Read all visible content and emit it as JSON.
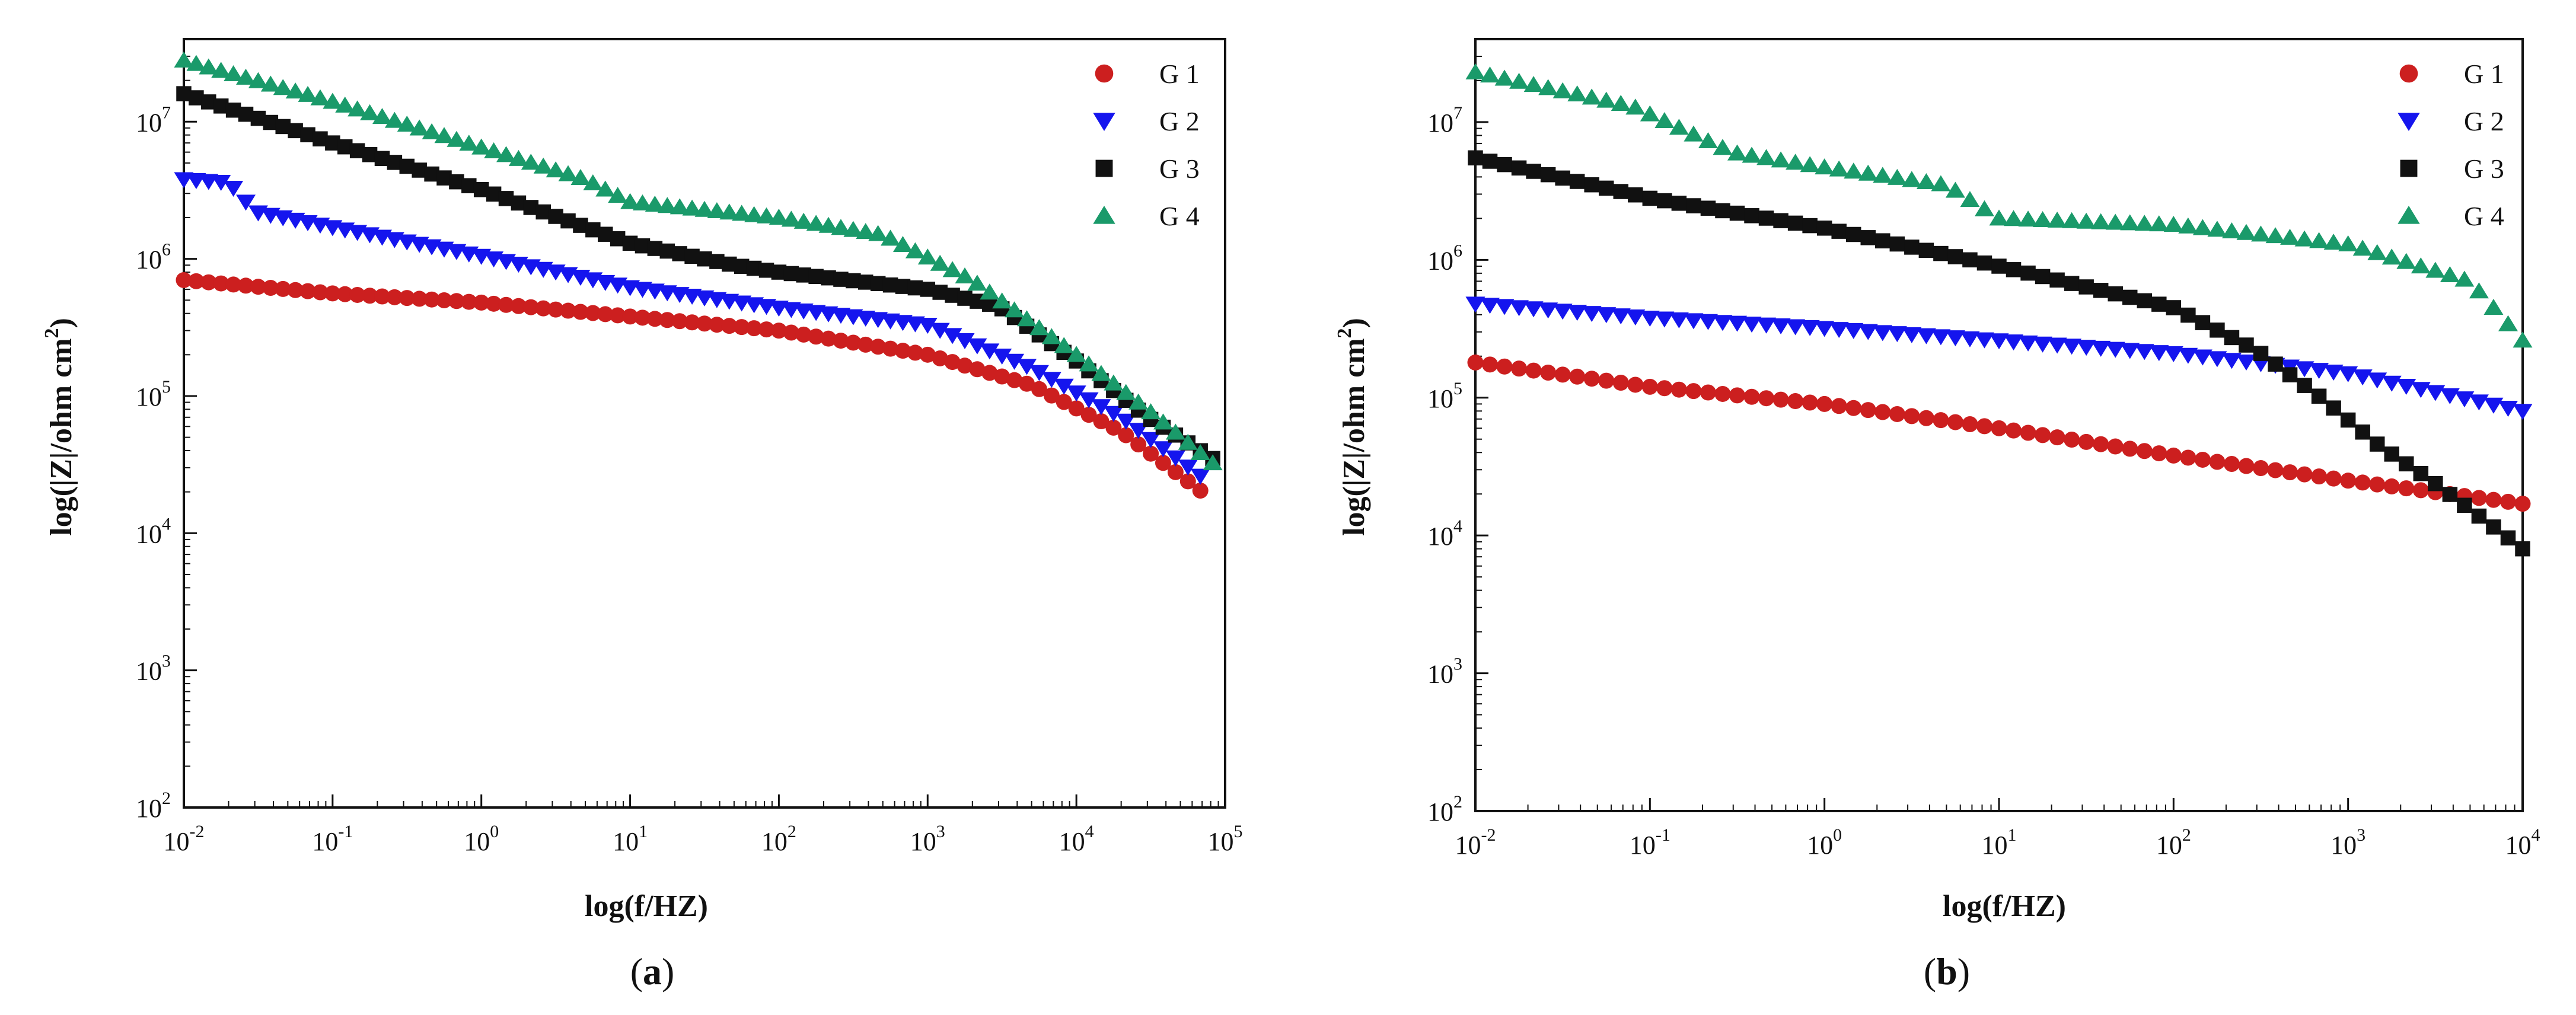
{
  "chart_data": [
    {
      "id": "a",
      "type": "scatter",
      "caption_open": "(",
      "caption_letter": "a",
      "caption_close": ")",
      "xlabel": "log(f/HZ)",
      "ylabel": "log(|Z|/ohm cm",
      "ylabel_sup": "2",
      "ylabel_end": ")",
      "xscale": "log",
      "yscale": "log",
      "xlim": [
        0.01,
        100000
      ],
      "ylim": [
        100,
        40000000
      ],
      "xticks": [
        {
          "value": 0.01,
          "base": "10",
          "exp": "-2"
        },
        {
          "value": 0.1,
          "base": "10",
          "exp": "-1"
        },
        {
          "value": 1,
          "base": "10",
          "exp": "0"
        },
        {
          "value": 10,
          "base": "10",
          "exp": "1"
        },
        {
          "value": 100,
          "base": "10",
          "exp": "2"
        },
        {
          "value": 1000,
          "base": "10",
          "exp": "3"
        },
        {
          "value": 10000,
          "base": "10",
          "exp": "4"
        },
        {
          "value": 100000,
          "base": "10",
          "exp": "5"
        }
      ],
      "yticks": [
        {
          "value": 100,
          "base": "10",
          "exp": "2"
        },
        {
          "value": 1000,
          "base": "10",
          "exp": "3"
        },
        {
          "value": 10000,
          "base": "10",
          "exp": "4"
        },
        {
          "value": 100000,
          "base": "10",
          "exp": "5"
        },
        {
          "value": 1000000,
          "base": "10",
          "exp": "6"
        },
        {
          "value": 10000000,
          "base": "10",
          "exp": "7"
        }
      ],
      "legend_position": "top-right",
      "series": [
        {
          "name": "G1",
          "label": "G 1",
          "marker": "circle",
          "color": "#cc1f1f",
          "points": [
            [
              0.01,
              700000
            ],
            [
              0.1,
              560000
            ],
            [
              1,
              480000
            ],
            [
              10,
              380000
            ],
            [
              100,
              300000
            ],
            [
              1000,
              200000
            ],
            [
              5000,
              120000
            ],
            [
              20000,
              55000
            ],
            [
              70000,
              20000
            ]
          ]
        },
        {
          "name": "G2",
          "label": "G 2",
          "marker": "triangle-down",
          "color": "#1515ee",
          "points": [
            [
              0.01,
              3800000
            ],
            [
              0.02,
              3600000
            ],
            [
              0.03,
              2200000
            ],
            [
              0.1,
              1700000
            ],
            [
              1,
              1050000
            ],
            [
              10,
              620000
            ],
            [
              100,
              440000
            ],
            [
              1000,
              330000
            ],
            [
              5000,
              160000
            ],
            [
              20000,
              70000
            ],
            [
              80000,
              23000
            ]
          ]
        },
        {
          "name": "G3",
          "label": "G 3",
          "marker": "square",
          "color": "#111111",
          "points": [
            [
              0.01,
              16000000
            ],
            [
              0.1,
              7000000
            ],
            [
              1,
              3200000
            ],
            [
              10,
              1300000
            ],
            [
              50,
              900000
            ],
            [
              100,
              800000
            ],
            [
              1000,
              600000
            ],
            [
              3000,
              450000
            ],
            [
              10000,
              180000
            ],
            [
              30000,
              70000
            ],
            [
              90000,
              33000
            ]
          ]
        },
        {
          "name": "G4",
          "label": "G 4",
          "marker": "triangle-up",
          "color": "#1a9a6a",
          "points": [
            [
              0.01,
              28000000
            ],
            [
              0.1,
              14000000
            ],
            [
              1,
              6500000
            ],
            [
              5,
              3800000
            ],
            [
              10,
              2600000
            ],
            [
              100,
              2000000
            ],
            [
              500,
              1500000
            ],
            [
              2000,
              700000
            ],
            [
              10000,
              200000
            ],
            [
              30000,
              80000
            ],
            [
              90000,
              30000
            ]
          ]
        }
      ]
    },
    {
      "id": "b",
      "type": "scatter",
      "caption_open": "(",
      "caption_letter": "b",
      "caption_close": ")",
      "xlabel": "log(f/HZ)",
      "ylabel": "log(|Z|/ohm cm",
      "ylabel_sup": "2",
      "ylabel_end": ")",
      "xscale": "log",
      "yscale": "log",
      "xlim": [
        0.01,
        10000
      ],
      "ylim": [
        100,
        40000000
      ],
      "xticks": [
        {
          "value": 0.01,
          "base": "10",
          "exp": "-2"
        },
        {
          "value": 0.1,
          "base": "10",
          "exp": "-1"
        },
        {
          "value": 1,
          "base": "10",
          "exp": "0"
        },
        {
          "value": 10,
          "base": "10",
          "exp": "1"
        },
        {
          "value": 100,
          "base": "10",
          "exp": "2"
        },
        {
          "value": 1000,
          "base": "10",
          "exp": "3"
        },
        {
          "value": 10000,
          "base": "10",
          "exp": "4"
        }
      ],
      "yticks": [
        {
          "value": 100,
          "base": "10",
          "exp": "2"
        },
        {
          "value": 1000,
          "base": "10",
          "exp": "3"
        },
        {
          "value": 10000,
          "base": "10",
          "exp": "4"
        },
        {
          "value": 100000,
          "base": "10",
          "exp": "5"
        },
        {
          "value": 1000000,
          "base": "10",
          "exp": "6"
        },
        {
          "value": 10000000,
          "base": "10",
          "exp": "7"
        }
      ],
      "legend_position": "top-right",
      "series": [
        {
          "name": "G1",
          "label": "G 1",
          "marker": "circle",
          "color": "#cc1f1f",
          "points": [
            [
              0.01,
              180000
            ],
            [
              0.1,
              120000
            ],
            [
              1,
              90000
            ],
            [
              10,
              60000
            ],
            [
              100,
              38000
            ],
            [
              1000,
              25000
            ],
            [
              10000,
              17000
            ]
          ]
        },
        {
          "name": "G2",
          "label": "G 2",
          "marker": "triangle-down",
          "color": "#1515ee",
          "points": [
            [
              0.01,
              480000
            ],
            [
              0.1,
              380000
            ],
            [
              1,
              320000
            ],
            [
              10,
              260000
            ],
            [
              100,
              210000
            ],
            [
              1000,
              150000
            ],
            [
              10000,
              80000
            ]
          ]
        },
        {
          "name": "G3",
          "label": "G 3",
          "marker": "square",
          "color": "#111111",
          "points": [
            [
              0.01,
              5500000
            ],
            [
              0.1,
              2800000
            ],
            [
              1,
              1700000
            ],
            [
              10,
              900000
            ],
            [
              100,
              450000
            ],
            [
              300,
              220000
            ],
            [
              700,
              100000
            ],
            [
              1500,
              45000
            ],
            [
              3000,
              25000
            ],
            [
              6000,
              13000
            ],
            [
              10000,
              8000
            ]
          ]
        },
        {
          "name": "G4",
          "label": "G 4",
          "marker": "triangle-up",
          "color": "#1a9a6a",
          "points": [
            [
              0.01,
              23000000
            ],
            [
              0.08,
              13000000
            ],
            [
              0.3,
              6000000
            ],
            [
              1,
              4700000
            ],
            [
              5,
              3500000
            ],
            [
              10,
              2000000
            ],
            [
              100,
              1800000
            ],
            [
              1000,
              1300000
            ],
            [
              5000,
              700000
            ],
            [
              10000,
              260000
            ]
          ]
        }
      ]
    }
  ]
}
